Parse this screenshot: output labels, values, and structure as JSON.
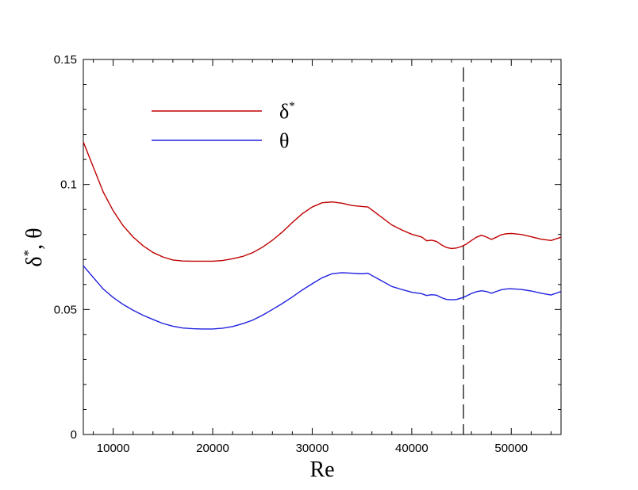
{
  "chart_data": {
    "type": "line",
    "xlabel": "Re",
    "ylabel": "δ*, θ",
    "xlim": [
      7000,
      55000
    ],
    "ylim": [
      0,
      0.15
    ],
    "x_ticks": [
      10000,
      20000,
      30000,
      40000,
      50000
    ],
    "x_tick_labels": [
      "10000",
      "20000",
      "30000",
      "40000",
      "50000"
    ],
    "y_ticks": [
      0,
      0.05,
      0.1,
      0.15
    ],
    "y_tick_labels": [
      "0",
      "0.05",
      "0.1",
      "0.15"
    ],
    "legend_position": "top-left",
    "vertical_reference_line": {
      "x": 45200,
      "style": "dashed",
      "color": "#000000"
    },
    "series": [
      {
        "name": "δ*",
        "color": "#c00000",
        "x": [
          7000,
          8000,
          9000,
          10000,
          11000,
          12000,
          13000,
          14000,
          15000,
          16000,
          17000,
          18000,
          19000,
          20000,
          21000,
          22000,
          23000,
          24000,
          25000,
          26000,
          27000,
          28000,
          29000,
          30000,
          31000,
          32000,
          33000,
          34000,
          35000,
          35600,
          36000,
          37000,
          38000,
          39000,
          40000,
          41000,
          41500,
          42000,
          42500,
          43000,
          43500,
          44000,
          44500,
          45000,
          45500,
          46000,
          46500,
          47000,
          47500,
          48000,
          48500,
          49000,
          49500,
          50000,
          51000,
          52000,
          53000,
          54000,
          55000
        ],
        "values": [
          0.117,
          0.107,
          0.097,
          0.0895,
          0.0835,
          0.079,
          0.0755,
          0.0728,
          0.071,
          0.0698,
          0.0694,
          0.0693,
          0.0693,
          0.0693,
          0.0696,
          0.0703,
          0.0712,
          0.0727,
          0.0749,
          0.0777,
          0.081,
          0.0848,
          0.0883,
          0.091,
          0.0927,
          0.093,
          0.0925,
          0.0916,
          0.0912,
          0.091,
          0.0898,
          0.0868,
          0.0838,
          0.0818,
          0.0801,
          0.079,
          0.0775,
          0.0777,
          0.0772,
          0.0758,
          0.0748,
          0.0744,
          0.0746,
          0.0752,
          0.0762,
          0.0776,
          0.0789,
          0.0797,
          0.079,
          0.078,
          0.0789,
          0.0799,
          0.0803,
          0.0804,
          0.08,
          0.0791,
          0.0781,
          0.0776,
          0.0789
        ]
      },
      {
        "name": "θ",
        "color": "#2020e0",
        "x": [
          7000,
          8000,
          9000,
          10000,
          11000,
          12000,
          13000,
          14000,
          15000,
          16000,
          17000,
          18000,
          19000,
          20000,
          21000,
          22000,
          23000,
          24000,
          25000,
          26000,
          27000,
          28000,
          29000,
          30000,
          31000,
          32000,
          33000,
          34000,
          35000,
          35600,
          36000,
          37000,
          38000,
          39000,
          40000,
          41000,
          41500,
          42000,
          42500,
          43000,
          43500,
          44000,
          44500,
          45000,
          45500,
          46000,
          46500,
          47000,
          47500,
          48000,
          48500,
          49000,
          49500,
          50000,
          51000,
          52000,
          53000,
          54000,
          55000
        ],
        "values": [
          0.0675,
          0.0628,
          0.0582,
          0.0548,
          0.052,
          0.0497,
          0.0477,
          0.046,
          0.0444,
          0.0433,
          0.0426,
          0.0423,
          0.0422,
          0.0422,
          0.0425,
          0.0432,
          0.0443,
          0.0457,
          0.0477,
          0.05,
          0.0524,
          0.055,
          0.0578,
          0.0603,
          0.0627,
          0.0643,
          0.0647,
          0.0645,
          0.0643,
          0.0645,
          0.0636,
          0.0614,
          0.0592,
          0.058,
          0.0569,
          0.0563,
          0.0556,
          0.0559,
          0.0557,
          0.0547,
          0.054,
          0.0539,
          0.054,
          0.0546,
          0.0554,
          0.0564,
          0.0571,
          0.0575,
          0.0572,
          0.0565,
          0.0572,
          0.0579,
          0.0582,
          0.0583,
          0.058,
          0.0574,
          0.0565,
          0.0558,
          0.0572
        ]
      }
    ]
  }
}
